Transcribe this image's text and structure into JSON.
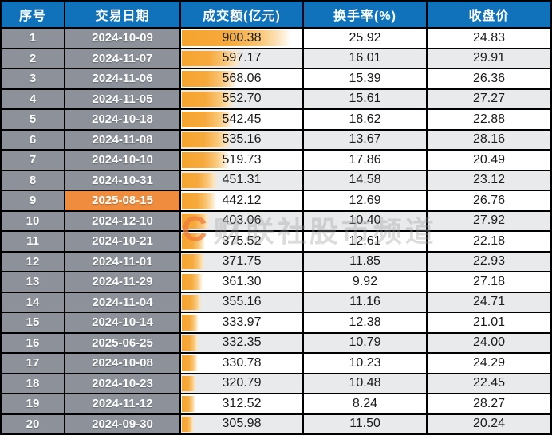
{
  "chart_data": {
    "type": "table",
    "title": "",
    "columns": [
      {
        "key": "index",
        "label": "序号"
      },
      {
        "key": "date",
        "label": "交易日期"
      },
      {
        "key": "turnover",
        "label": "成交额(亿元)"
      },
      {
        "key": "rate",
        "label": "换手率(%)"
      },
      {
        "key": "close",
        "label": "收盘价"
      }
    ],
    "rows": [
      {
        "index": "1",
        "date": "2024-10-09",
        "turnover": "900.38",
        "rate": "25.92",
        "close": "24.83",
        "highlight": false
      },
      {
        "index": "2",
        "date": "2024-11-07",
        "turnover": "597.17",
        "rate": "16.01",
        "close": "29.91",
        "highlight": false
      },
      {
        "index": "3",
        "date": "2024-11-06",
        "turnover": "568.06",
        "rate": "15.39",
        "close": "26.36",
        "highlight": false
      },
      {
        "index": "4",
        "date": "2024-11-05",
        "turnover": "552.70",
        "rate": "15.61",
        "close": "27.27",
        "highlight": false
      },
      {
        "index": "5",
        "date": "2024-10-18",
        "turnover": "542.45",
        "rate": "18.62",
        "close": "22.88",
        "highlight": false
      },
      {
        "index": "6",
        "date": "2024-11-08",
        "turnover": "535.16",
        "rate": "13.67",
        "close": "28.16",
        "highlight": false
      },
      {
        "index": "7",
        "date": "2024-10-10",
        "turnover": "519.73",
        "rate": "17.86",
        "close": "20.49",
        "highlight": false
      },
      {
        "index": "8",
        "date": "2024-10-31",
        "turnover": "451.31",
        "rate": "14.58",
        "close": "23.12",
        "highlight": false
      },
      {
        "index": "9",
        "date": "2025-08-15",
        "turnover": "442.12",
        "rate": "12.69",
        "close": "26.76",
        "highlight": true
      },
      {
        "index": "10",
        "date": "2024-12-10",
        "turnover": "403.06",
        "rate": "10.40",
        "close": "27.92",
        "highlight": false
      },
      {
        "index": "11",
        "date": "2024-10-21",
        "turnover": "375.52",
        "rate": "12.61",
        "close": "22.18",
        "highlight": false
      },
      {
        "index": "12",
        "date": "2024-11-01",
        "turnover": "371.75",
        "rate": "11.85",
        "close": "22.93",
        "highlight": false
      },
      {
        "index": "13",
        "date": "2024-11-29",
        "turnover": "361.30",
        "rate": "9.92",
        "close": "27.18",
        "highlight": false
      },
      {
        "index": "14",
        "date": "2024-11-04",
        "turnover": "355.16",
        "rate": "11.16",
        "close": "24.71",
        "highlight": false
      },
      {
        "index": "15",
        "date": "2024-10-14",
        "turnover": "333.97",
        "rate": "12.38",
        "close": "21.01",
        "highlight": false
      },
      {
        "index": "16",
        "date": "2025-06-25",
        "turnover": "332.35",
        "rate": "10.79",
        "close": "24.00",
        "highlight": false
      },
      {
        "index": "17",
        "date": "2024-10-08",
        "turnover": "330.78",
        "rate": "10.23",
        "close": "24.29",
        "highlight": false
      },
      {
        "index": "18",
        "date": "2024-10-23",
        "turnover": "320.79",
        "rate": "10.48",
        "close": "22.45",
        "highlight": false
      },
      {
        "index": "19",
        "date": "2024-11-12",
        "turnover": "312.52",
        "rate": "8.24",
        "close": "28.27",
        "highlight": false
      },
      {
        "index": "20",
        "date": "2024-09-30",
        "turnover": "305.98",
        "rate": "11.50",
        "close": "20.24",
        "highlight": false
      }
    ],
    "databar": {
      "column": "turnover",
      "min": 305.98,
      "max": 900.38,
      "min_pct": 10,
      "max_pct": 90
    }
  },
  "watermark": {
    "logo": "C",
    "text": "财联社股市频道"
  },
  "colors": {
    "header_blue": "#1172BC",
    "index_date_gray": "#8C919A",
    "zebra_gray": "#E8EAEC",
    "highlight_orange": "#EF8C3E",
    "databar_orange": "#F5A42E",
    "border_black": "#000000"
  }
}
